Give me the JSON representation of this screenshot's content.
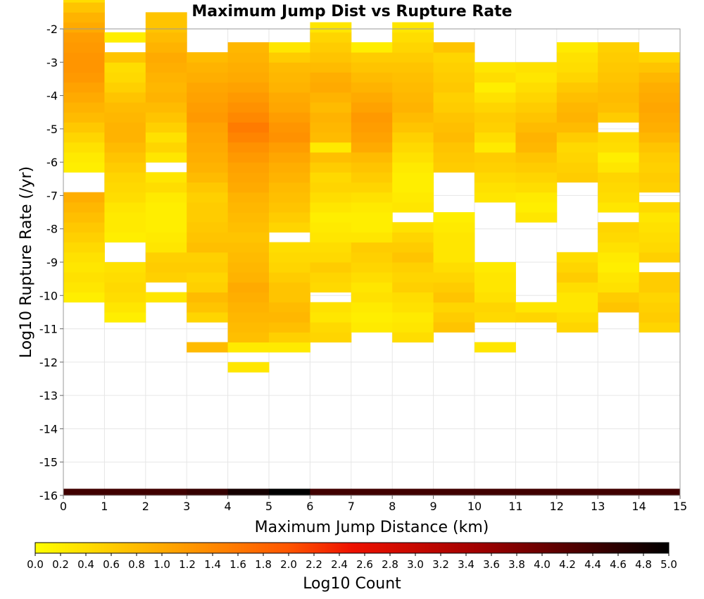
{
  "chart_data": {
    "type": "heatmap",
    "title": "Maximum Jump Dist vs Rupture Rate",
    "xlabel": "Maximum Jump Distance (km)",
    "ylabel": "Log10 Rupture Rate (/yr)",
    "xlim": [
      0,
      15
    ],
    "ylim": [
      -16,
      -2
    ],
    "x_ticks": [
      "0",
      "1",
      "2",
      "3",
      "4",
      "5",
      "6",
      "7",
      "8",
      "9",
      "10",
      "11",
      "12",
      "13",
      "14",
      "15"
    ],
    "y_ticks": [
      "-2",
      "-3",
      "-4",
      "-5",
      "-6",
      "-7",
      "-8",
      "-9",
      "-10",
      "-11",
      "-12",
      "-13",
      "-14",
      "-15",
      "-16"
    ],
    "grid": true,
    "colorbar": {
      "label": "Log10 Count",
      "min": 0.0,
      "max": 5.0,
      "ticks": [
        "0.0",
        "0.2",
        "0.4",
        "0.6",
        "0.8",
        "1.0",
        "1.2",
        "1.4",
        "1.6",
        "1.8",
        "2.0",
        "2.2",
        "2.4",
        "2.6",
        "2.8",
        "3.0",
        "3.2",
        "3.4",
        "3.6",
        "3.8",
        "4.0",
        "4.2",
        "4.4",
        "4.6",
        "4.8",
        "5.0"
      ],
      "colors": [
        "#ffff00",
        "#ffaa00",
        "#ff5500",
        "#ee1100",
        "#a00000",
        "#000000"
      ]
    },
    "cells": {
      "description_of_units": "x bin start (km, width 1), y bin start (log10 rate, height 0.3), value = log10 count",
      "y_bin_height": 0.3,
      "columns": [
        {
          "x": 0,
          "y0": -10.2,
          "values": [
            0.2,
            0.3,
            0.35,
            0.3,
            0.35,
            0.45,
            0.55,
            0.65,
            0.75,
            0.85,
            0.95,
            null,
            null,
            0.2,
            0.25,
            0.35,
            0.5,
            0.65,
            0.8,
            0.9,
            1.0,
            1.1,
            1.2,
            1.25,
            1.25,
            1.2,
            1.15,
            1.0,
            0.9,
            0.7,
            0.4
          ]
        },
        {
          "x": 1,
          "y0": -10.8,
          "values": [
            0.2,
            0.3,
            0.4,
            0.45,
            0.4,
            0.35,
            null,
            null,
            0.2,
            0.25,
            0.25,
            0.3,
            0.4,
            0.45,
            0.5,
            0.6,
            0.7,
            0.8,
            0.9,
            0.9,
            0.85,
            0.8,
            0.7,
            0.55,
            0.45,
            0.4,
            0.7,
            null,
            0.2
          ]
        },
        {
          "x": 2,
          "y0": -10.2,
          "values": [
            0.3,
            null,
            0.55,
            0.6,
            0.55,
            0.3,
            0.25,
            0.2,
            0.2,
            0.2,
            0.25,
            0.4,
            0.3,
            null,
            0.3,
            0.5,
            0.35,
            0.55,
            0.7,
            0.8,
            0.9,
            0.85,
            0.9,
            0.95,
            1.0,
            0.9,
            0.8,
            0.7,
            0.7
          ]
        },
        {
          "x": 3,
          "y0": -11.7,
          "values": [
            0.8,
            null,
            null,
            0.5,
            0.7,
            0.8,
            0.55,
            0.5,
            0.6,
            0.55,
            0.75,
            0.7,
            0.65,
            0.6,
            0.6,
            0.55,
            0.65,
            0.8,
            0.9,
            0.95,
            1.0,
            1.05,
            1.1,
            1.2,
            1.15,
            1.1,
            1.05,
            0.95,
            0.9,
            0.8
          ]
        },
        {
          "x": 4,
          "y0": -12.3,
          "values": [
            0.3,
            null,
            0.25,
            0.75,
            0.8,
            0.85,
            0.9,
            0.95,
            1.0,
            0.9,
            0.85,
            0.8,
            0.75,
            0.7,
            0.75,
            0.8,
            0.85,
            0.9,
            1.0,
            1.05,
            1.1,
            1.2,
            1.3,
            1.45,
            1.55,
            1.4,
            1.3,
            1.2,
            1.1,
            1.0,
            0.95,
            0.9,
            0.85
          ]
        },
        {
          "x": 5,
          "y0": -11.7,
          "values": [
            0.25,
            0.55,
            0.75,
            0.85,
            0.8,
            0.7,
            0.7,
            0.6,
            0.5,
            0.45,
            0.4,
            null,
            0.5,
            0.6,
            0.7,
            0.75,
            0.8,
            0.9,
            0.95,
            1.05,
            1.15,
            1.3,
            1.25,
            1.15,
            1.05,
            1.0,
            0.9,
            0.85,
            0.8,
            0.6,
            0.3
          ]
        },
        {
          "x": 6,
          "y0": -11.4,
          "values": [
            0.5,
            0.45,
            0.3,
            0.35,
            null,
            0.45,
            0.5,
            0.6,
            0.45,
            0.4,
            0.3,
            0.25,
            0.2,
            0.3,
            0.4,
            0.5,
            0.45,
            0.6,
            0.75,
            0.25,
            0.8,
            0.85,
            0.9,
            0.8,
            0.9,
            1.0,
            0.95,
            0.8,
            0.7,
            0.6,
            0.5,
            0.3
          ]
        },
        {
          "x": 7,
          "y0": -11.1,
          "values": [
            0.25,
            0.2,
            0.25,
            0.35,
            0.3,
            0.4,
            0.5,
            0.55,
            0.6,
            0.3,
            0.2,
            0.2,
            0.25,
            0.35,
            0.5,
            0.6,
            0.7,
            0.8,
            1.0,
            1.1,
            1.15,
            1.2,
            1.1,
            1.0,
            0.9,
            0.8,
            0.7,
            0.6,
            0.2
          ]
        },
        {
          "x": 8,
          "y0": -11.4,
          "values": [
            0.4,
            0.3,
            0.25,
            0.35,
            0.4,
            0.55,
            0.5,
            0.55,
            0.7,
            0.6,
            0.5,
            0.35,
            null,
            0.3,
            0.25,
            0.2,
            0.2,
            0.25,
            0.35,
            0.45,
            0.55,
            0.7,
            0.8,
            0.9,
            0.85,
            0.8,
            0.75,
            0.7,
            0.6,
            0.5,
            0.4,
            0.3
          ]
        },
        {
          "x": 9,
          "y0": -11.1,
          "values": [
            0.7,
            0.6,
            0.5,
            0.7,
            0.6,
            0.5,
            0.4,
            0.3,
            0.3,
            0.3,
            0.25,
            0.2,
            null,
            null,
            null,
            null,
            0.6,
            0.65,
            0.7,
            0.8,
            0.75,
            0.7,
            0.6,
            0.55,
            0.65,
            0.6,
            0.55,
            0.5,
            0.7
          ]
        },
        {
          "x": 10,
          "y0": -11.7,
          "values": [
            0.3,
            null,
            null,
            0.45,
            0.5,
            0.35,
            0.3,
            0.3,
            0.25,
            null,
            null,
            null,
            null,
            null,
            null,
            0.3,
            0.35,
            0.45,
            0.55,
            0.6,
            0.25,
            0.4,
            0.55,
            0.6,
            0.5,
            0.35,
            0.2,
            0.4,
            0.3
          ]
        },
        {
          "x": 11,
          "y0": -10.8,
          "values": [
            0.5,
            0.3,
            null,
            null,
            null,
            null,
            null,
            null,
            null,
            null,
            0.3,
            0.2,
            0.25,
            0.4,
            0.5,
            0.6,
            0.7,
            0.85,
            0.9,
            0.8,
            0.7,
            0.6,
            0.5,
            0.4,
            0.3,
            0.35
          ]
        },
        {
          "x": 12,
          "y0": -11.1,
          "values": [
            0.5,
            0.4,
            0.3,
            0.3,
            0.4,
            0.6,
            0.5,
            0.4,
            null,
            null,
            null,
            null,
            null,
            null,
            null,
            0.6,
            0.55,
            0.5,
            0.45,
            0.6,
            0.8,
            0.9,
            0.85,
            0.75,
            0.65,
            0.5,
            0.4,
            0.35,
            0.25
          ]
        },
        {
          "x": 13,
          "y0": -10.5,
          "values": [
            0.7,
            0.6,
            0.35,
            0.3,
            0.2,
            0.25,
            0.35,
            0.45,
            0.5,
            null,
            0.3,
            0.4,
            0.45,
            0.5,
            0.3,
            0.2,
            0.4,
            0.45,
            null,
            0.6,
            0.75,
            0.8,
            0.75,
            0.7,
            0.65,
            0.6,
            0.55
          ]
        },
        {
          "x": 14,
          "y0": -11.1,
          "values": [
            0.5,
            0.6,
            0.55,
            0.5,
            0.6,
            0.6,
            null,
            0.55,
            0.45,
            0.4,
            0.35,
            0.3,
            0.45,
            null,
            0.55,
            0.6,
            0.55,
            0.6,
            0.7,
            0.85,
            0.95,
            1.0,
            1.05,
            1.0,
            0.95,
            0.85,
            0.7,
            0.5
          ]
        }
      ],
      "bottom_row": {
        "y": -16,
        "values": [
          4.4,
          4.4,
          4.4,
          4.5,
          4.8,
          5.0,
          4.4,
          4.4,
          4.4,
          4.4,
          4.4,
          4.4,
          4.4,
          4.4,
          4.4
        ]
      }
    }
  }
}
